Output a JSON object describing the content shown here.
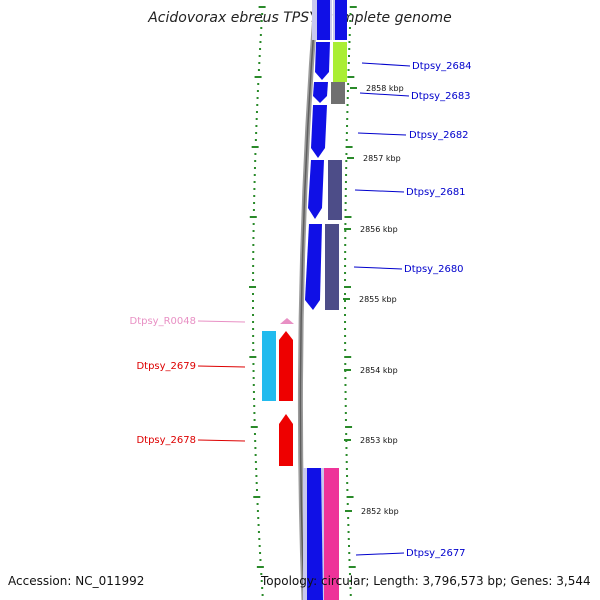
{
  "title": "Acidovorax ebreus TPSY, complete genome",
  "accession": "Accession: NC_011992",
  "topology": "Topology: circular; Length: 3,796,573 bp; Genes: 3,544",
  "colors": {
    "plus_strand_blue": "#1010e6",
    "plus_strand_pale": "#c8c8ee",
    "minus_strand_navy": "#4d4d88",
    "label_blue": "#0000cc",
    "label_red": "#dd0000",
    "label_pink": "#e890c4",
    "cyan": "#22bbee",
    "lime": "#aaee33",
    "gray": "#707070",
    "magenta": "#ee3399",
    "tick_green": "#2a8a2a"
  },
  "scale_labels": [
    "2858 kbp",
    "2857 kbp",
    "2856 kbp",
    "2855 kbp",
    "2854 kbp",
    "2853 kbp",
    "2852 kbp"
  ],
  "gene_labels": [
    {
      "text": "Dtpsy_2684",
      "color": "#0000cc"
    },
    {
      "text": "Dtpsy_2683",
      "color": "#0000cc"
    },
    {
      "text": "Dtpsy_2682",
      "color": "#0000cc"
    },
    {
      "text": "Dtpsy_2681",
      "color": "#0000cc"
    },
    {
      "text": "Dtpsy_2680",
      "color": "#0000cc"
    },
    {
      "text": "Dtpsy_2677",
      "color": "#0000cc"
    },
    {
      "text": "Dtpsy_R0048",
      "color": "#e890c4"
    },
    {
      "text": "Dtpsy_2679",
      "color": "#dd0000"
    },
    {
      "text": "Dtpsy_2678",
      "color": "#dd0000"
    }
  ]
}
